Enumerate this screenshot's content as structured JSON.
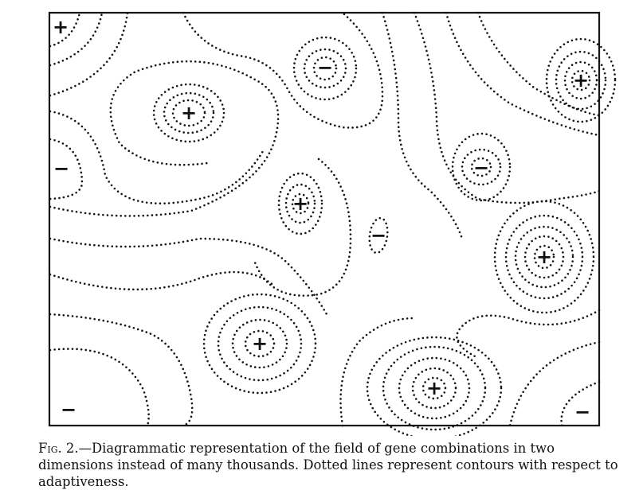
{
  "figure": {
    "caption_label": "Fig. 2.",
    "caption_text": "—Diagrammatic representation of the field of gene combinations in two dimensions instead of many thousands. Dotted lines represent contours with respect to adaptiveness."
  },
  "markers": [
    {
      "id": "plus-1",
      "sign": "+"
    },
    {
      "id": "minus-1",
      "sign": "−"
    },
    {
      "id": "plus-2",
      "sign": "+"
    },
    {
      "id": "minus-2",
      "sign": "−"
    },
    {
      "id": "plus-3",
      "sign": "+"
    },
    {
      "id": "minus-3",
      "sign": "−"
    },
    {
      "id": "plus-4",
      "sign": "+"
    },
    {
      "id": "minus-4",
      "sign": "−"
    },
    {
      "id": "minus-5",
      "sign": "−"
    },
    {
      "id": "plus-5",
      "sign": "+"
    },
    {
      "id": "plus-6",
      "sign": "+"
    },
    {
      "id": "plus-7",
      "sign": "+"
    },
    {
      "id": "minus-6",
      "sign": "−"
    },
    {
      "id": "minus-7",
      "sign": "−"
    }
  ]
}
